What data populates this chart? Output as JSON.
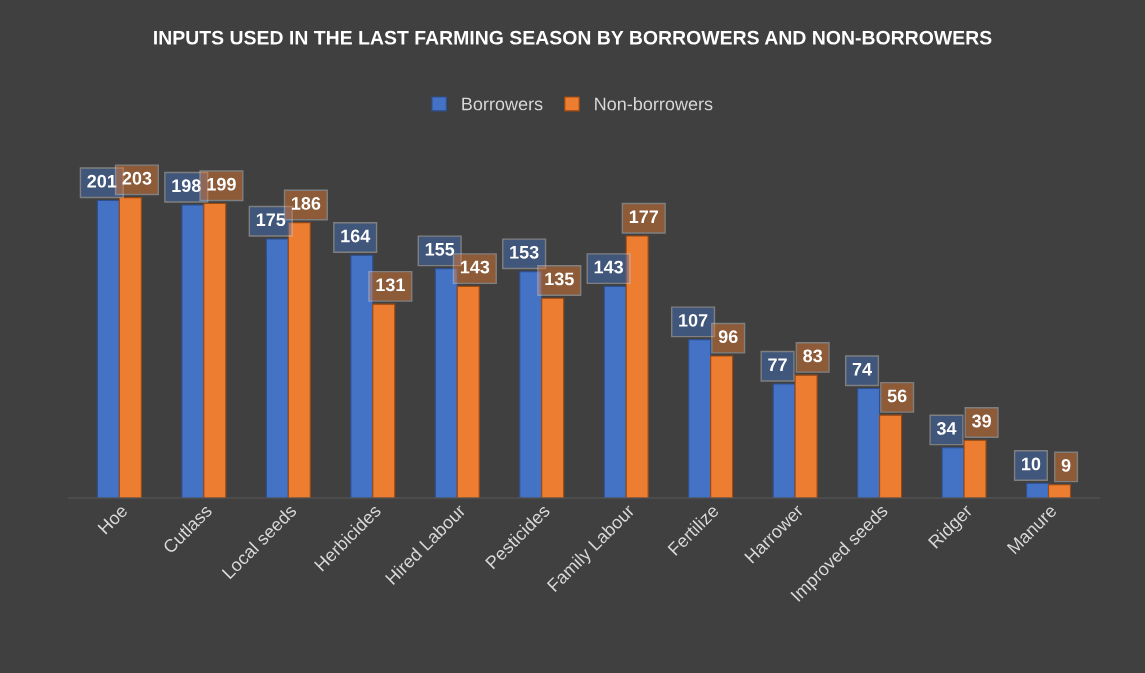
{
  "chart_data": {
    "type": "bar",
    "title": "INPUTS USED IN THE LAST FARMING SEASON BY BORROWERS AND NON-BORROWERS",
    "categories": [
      "Hoe",
      "Cutlass",
      "Local seeds",
      "Herbicides",
      "Hired Labour",
      "Pesticides",
      "Family Labour",
      "Fertilize",
      "Harrower",
      "Improved seeds",
      "Ridger",
      "Manure"
    ],
    "series": [
      {
        "name": "Borrowers",
        "color": "#4472c4",
        "values": [
          201,
          198,
          175,
          164,
          155,
          153,
          143,
          107,
          77,
          74,
          34,
          10
        ]
      },
      {
        "name": "Non-borrowers",
        "color": "#ed7d31",
        "values": [
          203,
          199,
          186,
          131,
          143,
          135,
          177,
          96,
          83,
          56,
          39,
          9
        ]
      }
    ],
    "data_labels": true,
    "legend": "top",
    "grid": false
  }
}
